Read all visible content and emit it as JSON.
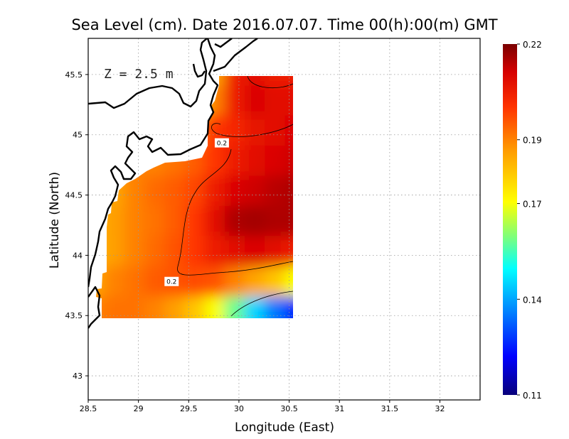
{
  "chart_data": {
    "type": "heatmap",
    "title": "Sea Level (cm). Date 2016.07.07. Time 00(h):00(m) GMT",
    "xlabel": "Longitude (East)",
    "ylabel": "Latitude (North)",
    "annotation": "Z = 2.5 m",
    "xlim": [
      28.5,
      32.4
    ],
    "ylim": [
      42.8,
      45.8
    ],
    "x_ticks": [
      "28.5",
      "29",
      "29.5",
      "30",
      "30.5",
      "31",
      "31.5",
      "32"
    ],
    "y_ticks": [
      "43",
      "43.5",
      "44",
      "44.5",
      "45",
      "45.5"
    ],
    "grid": true,
    "colorbar": {
      "min": 0.11,
      "max": 0.22,
      "tick_labels": [
        "0.22",
        "0.19",
        "0.17",
        "0.14",
        "0.11"
      ],
      "tick_values": [
        0.22,
        0.19,
        0.17,
        0.14,
        0.11
      ],
      "colors": [
        "#08007a",
        "#0000ff",
        "#00a2ff",
        "#00ffff",
        "#7cff7c",
        "#ffff00",
        "#ff9900",
        "#ff3300",
        "#d60000",
        "#7a0000"
      ]
    },
    "contour_labels": [
      "0.2",
      "0.2"
    ],
    "contour_label_positions": [
      [
        29.83,
        44.93
      ],
      [
        29.33,
        43.78
      ]
    ],
    "field_extent": {
      "lon": [
        28.63,
        30.55
      ],
      "lat": [
        43.48,
        45.5
      ]
    },
    "field_grid": {
      "lon": [
        28.6,
        28.8,
        29.0,
        29.2,
        29.4,
        29.6,
        29.8,
        30.0,
        30.2,
        30.4,
        30.6
      ],
      "lat": [
        45.5,
        45.25,
        45.0,
        44.75,
        44.5,
        44.25,
        44.0,
        43.75,
        43.5
      ],
      "values": [
        [
          null,
          null,
          null,
          null,
          null,
          0.17,
          0.185,
          0.205,
          0.208,
          0.205,
          0.205
        ],
        [
          null,
          null,
          null,
          null,
          null,
          null,
          0.19,
          0.205,
          0.21,
          0.208,
          0.208
        ],
        [
          null,
          null,
          null,
          null,
          null,
          0.19,
          0.2,
          0.203,
          0.207,
          0.208,
          0.21
        ],
        [
          null,
          null,
          null,
          0.19,
          0.192,
          0.195,
          0.2,
          0.205,
          0.208,
          0.21,
          0.212
        ],
        [
          null,
          0.185,
          0.19,
          0.193,
          0.195,
          0.198,
          0.205,
          0.21,
          0.212,
          0.214,
          0.215
        ],
        [
          0.183,
          0.186,
          0.19,
          0.192,
          0.195,
          0.2,
          0.208,
          0.215,
          0.216,
          0.215,
          0.215
        ],
        [
          0.182,
          0.186,
          0.19,
          0.193,
          0.196,
          0.2,
          0.205,
          0.208,
          0.21,
          0.208,
          0.205
        ],
        [
          0.185,
          0.19,
          0.192,
          0.195,
          0.196,
          0.197,
          0.196,
          0.19,
          0.185,
          0.18,
          0.17
        ],
        [
          0.19,
          0.192,
          0.192,
          0.19,
          0.186,
          0.18,
          0.17,
          0.158,
          0.145,
          0.135,
          0.125
        ]
      ]
    }
  }
}
